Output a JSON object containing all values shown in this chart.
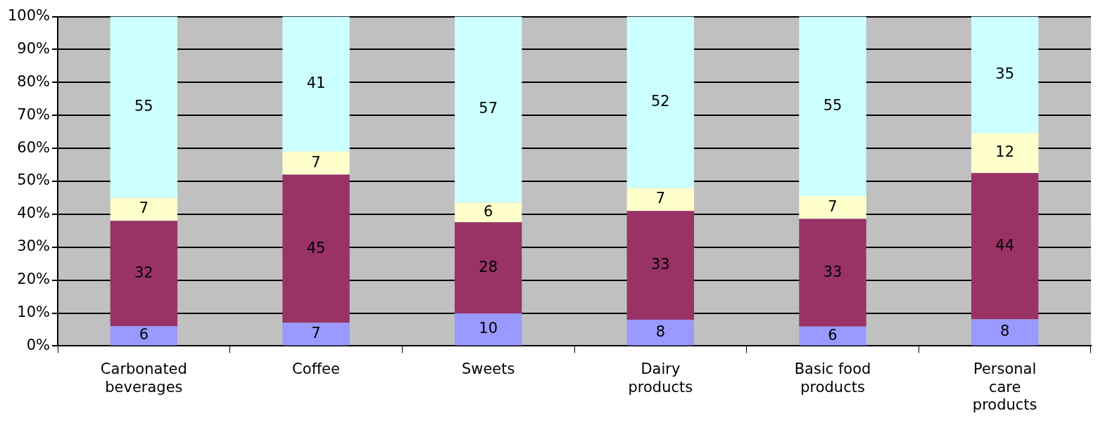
{
  "chart_data": {
    "type": "bar",
    "stacked": true,
    "categories": [
      "Carbonated beverages",
      "Coffee",
      "Sweets",
      "Dairy products",
      "Basic food products",
      "Personal care products"
    ],
    "series": [
      {
        "color": "#9999ff",
        "values": [
          6,
          7,
          9.9,
          8,
          5.9,
          8.1
        ],
        "value_labels": [
          "6",
          "7",
          "10",
          "8",
          "6",
          "8"
        ]
      },
      {
        "color": "#993366",
        "values": [
          32,
          45,
          27.7,
          33,
          32.7,
          44.4
        ],
        "value_labels": [
          "32",
          "45",
          "28",
          "33",
          "33",
          "44"
        ]
      },
      {
        "color": "#ffffcc",
        "values": [
          7,
          7,
          5.9,
          7,
          6.9,
          12.1
        ],
        "value_labels": [
          "7",
          "7",
          "6",
          "7",
          "7",
          "12"
        ]
      },
      {
        "color": "#ccffff",
        "values": [
          55,
          41,
          56.5,
          52,
          54.5,
          35.4
        ],
        "value_labels": [
          "55",
          "41",
          "57",
          "52",
          "55",
          "35"
        ]
      }
    ],
    "ylim": [
      0,
      100
    ],
    "yticks": [
      {
        "value": 0,
        "label": "0%"
      },
      {
        "value": 10,
        "label": "10%"
      },
      {
        "value": 20,
        "label": "20%"
      },
      {
        "value": 30,
        "label": "30%"
      },
      {
        "value": 40,
        "label": "40%"
      },
      {
        "value": 50,
        "label": "50%"
      },
      {
        "value": 60,
        "label": "60%"
      },
      {
        "value": 70,
        "label": "70%"
      },
      {
        "value": 80,
        "label": "80%"
      },
      {
        "value": 90,
        "label": "90%"
      },
      {
        "value": 100,
        "label": "100%"
      }
    ],
    "grid": "y",
    "legend": false
  }
}
